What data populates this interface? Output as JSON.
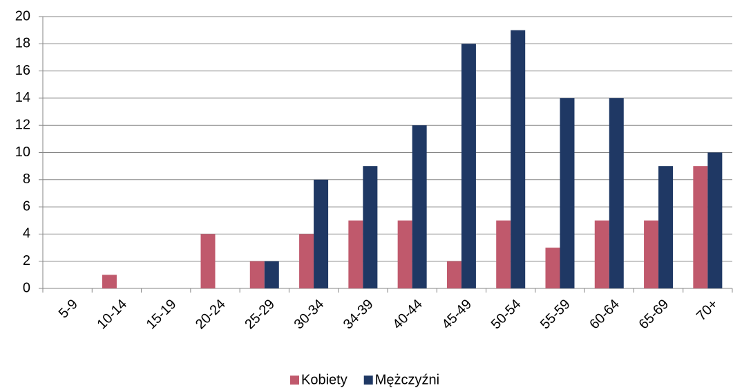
{
  "chart_data": {
    "type": "bar",
    "categories": [
      "5-9",
      "10-14",
      "15-19",
      "20-24",
      "25-29",
      "30-34",
      "34-39",
      "40-44",
      "45-49",
      "50-54",
      "55-59",
      "60-64",
      "65-69",
      "70+"
    ],
    "series": [
      {
        "name": "Kobiety",
        "color": "#c0596c",
        "values": [
          0,
          1,
          0,
          4,
          2,
          4,
          5,
          5,
          2,
          5,
          3,
          5,
          5,
          9
        ]
      },
      {
        "name": "Mężczyźni",
        "color": "#1f3864",
        "values": [
          0,
          0,
          0,
          0,
          2,
          8,
          9,
          12,
          18,
          19,
          14,
          14,
          9,
          10
        ]
      }
    ],
    "ylim": [
      0,
      20
    ],
    "yticks": [
      0,
      2,
      4,
      6,
      8,
      10,
      12,
      14,
      16,
      18,
      20
    ],
    "grid": true,
    "legend": "bottom"
  }
}
